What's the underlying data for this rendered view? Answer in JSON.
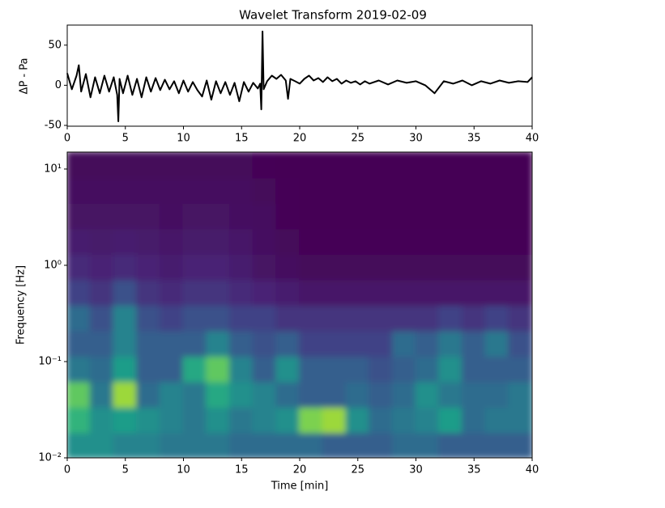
{
  "chart_data": [
    {
      "type": "line",
      "title": "Wavelet Transform 2019-02-09",
      "ylabel": "ΔP - Pa",
      "color": "#000000",
      "x": [
        0,
        0.4,
        0.8,
        1.0,
        1.2,
        1.6,
        2.0,
        2.4,
        2.8,
        3.2,
        3.6,
        4.0,
        4.3,
        4.4,
        4.5,
        4.8,
        5.2,
        5.6,
        6.0,
        6.4,
        6.8,
        7.2,
        7.6,
        8.0,
        8.4,
        8.8,
        9.2,
        9.6,
        10.0,
        10.4,
        10.8,
        11.2,
        11.6,
        12.0,
        12.4,
        12.8,
        13.2,
        13.6,
        14.0,
        14.4,
        14.8,
        15.2,
        15.6,
        16.0,
        16.4,
        16.6,
        16.7,
        16.8,
        16.9,
        17.2,
        17.6,
        18.0,
        18.4,
        18.8,
        19.0,
        19.2,
        19.6,
        20.0,
        20.4,
        20.8,
        21.2,
        21.6,
        22.0,
        22.4,
        22.8,
        23.2,
        23.6,
        24.0,
        24.4,
        24.8,
        25.2,
        25.6,
        26.0,
        26.8,
        27.6,
        28.4,
        29.2,
        30.0,
        30.8,
        31.6,
        32.4,
        33.2,
        34.0,
        34.8,
        35.6,
        36.4,
        37.2,
        38.0,
        38.8,
        39.6,
        40.0
      ],
      "values": [
        15,
        -5,
        12,
        25,
        -8,
        14,
        -15,
        10,
        -10,
        12,
        -8,
        10,
        -12,
        -45,
        8,
        -10,
        12,
        -12,
        8,
        -15,
        10,
        -8,
        9,
        -6,
        7,
        -5,
        5,
        -10,
        6,
        -8,
        4,
        -6,
        -14,
        6,
        -18,
        5,
        -10,
        4,
        -12,
        3,
        -20,
        4,
        -8,
        3,
        -4,
        2,
        -30,
        67,
        -5,
        5,
        12,
        8,
        13,
        6,
        -17,
        8,
        5,
        2,
        8,
        12,
        6,
        9,
        4,
        10,
        5,
        8,
        2,
        6,
        3,
        5,
        1,
        5,
        2,
        6,
        1,
        6,
        3,
        5,
        0,
        -10,
        5,
        2,
        6,
        0,
        5,
        2,
        6,
        3,
        5,
        4,
        10
      ],
      "xlim": [
        0,
        40
      ],
      "xticks": [
        0,
        5,
        10,
        15,
        20,
        25,
        30,
        35,
        40
      ],
      "ylim": [
        -51,
        75
      ],
      "yticks": [
        -50,
        0,
        50
      ]
    },
    {
      "type": "heatmap",
      "xlabel": "Time  [min]",
      "ylabel": "Frequency [Hz]",
      "colormap": "viridis",
      "log_y": true,
      "xlim": [
        0,
        40
      ],
      "xticks": [
        0,
        5,
        10,
        15,
        20,
        25,
        30,
        35,
        40
      ],
      "ylim": [
        0.01,
        15
      ],
      "yticks": [
        {
          "value": 0.01,
          "label": "10⁻²"
        },
        {
          "value": 0.1,
          "label": "10⁻¹"
        },
        {
          "value": 1,
          "label": "10⁰"
        },
        {
          "value": 10,
          "label": "10¹"
        }
      ],
      "z": [
        [
          0.5,
          0.5,
          0.45,
          0.45,
          0.4,
          0.4,
          0.4,
          0.35,
          0.35,
          0.35,
          0.35,
          0.3,
          0.3,
          0.3,
          0.35,
          0.35,
          0.3,
          0.3,
          0.3,
          0.3
        ],
        [
          0.65,
          0.5,
          0.55,
          0.5,
          0.45,
          0.4,
          0.5,
          0.4,
          0.45,
          0.5,
          0.8,
          0.85,
          0.5,
          0.35,
          0.4,
          0.45,
          0.55,
          0.35,
          0.4,
          0.4
        ],
        [
          0.75,
          0.4,
          0.85,
          0.35,
          0.45,
          0.4,
          0.6,
          0.5,
          0.45,
          0.35,
          0.3,
          0.3,
          0.35,
          0.3,
          0.35,
          0.5,
          0.4,
          0.35,
          0.35,
          0.4
        ],
        [
          0.4,
          0.35,
          0.55,
          0.3,
          0.3,
          0.6,
          0.75,
          0.45,
          0.3,
          0.5,
          0.3,
          0.3,
          0.3,
          0.25,
          0.3,
          0.35,
          0.5,
          0.3,
          0.3,
          0.3
        ],
        [
          0.3,
          0.3,
          0.45,
          0.3,
          0.3,
          0.3,
          0.45,
          0.3,
          0.25,
          0.3,
          0.2,
          0.2,
          0.2,
          0.2,
          0.35,
          0.3,
          0.4,
          0.3,
          0.4,
          0.25
        ],
        [
          0.35,
          0.25,
          0.45,
          0.25,
          0.2,
          0.25,
          0.25,
          0.2,
          0.2,
          0.15,
          0.15,
          0.15,
          0.15,
          0.15,
          0.15,
          0.15,
          0.2,
          0.15,
          0.2,
          0.15
        ],
        [
          0.2,
          0.15,
          0.25,
          0.15,
          0.12,
          0.15,
          0.15,
          0.12,
          0.1,
          0.08,
          0.06,
          0.06,
          0.06,
          0.06,
          0.06,
          0.06,
          0.06,
          0.06,
          0.06,
          0.06
        ],
        [
          0.12,
          0.1,
          0.12,
          0.1,
          0.08,
          0.1,
          0.1,
          0.08,
          0.05,
          0.03,
          0.02,
          0.02,
          0.02,
          0.02,
          0.02,
          0.02,
          0.02,
          0.02,
          0.02,
          0.02
        ],
        [
          0.08,
          0.07,
          0.08,
          0.07,
          0.06,
          0.07,
          0.07,
          0.06,
          0.04,
          0.02,
          0.01,
          0.01,
          0.01,
          0.01,
          0.01,
          0.01,
          0.01,
          0.01,
          0.01,
          0.01
        ],
        [
          0.05,
          0.05,
          0.05,
          0.05,
          0.04,
          0.05,
          0.05,
          0.04,
          0.03,
          0.01,
          0,
          0,
          0,
          0,
          0,
          0,
          0,
          0,
          0,
          0
        ],
        [
          0.03,
          0.03,
          0.03,
          0.03,
          0.03,
          0.03,
          0.03,
          0.03,
          0.02,
          0.01,
          0,
          0,
          0,
          0,
          0,
          0,
          0,
          0,
          0,
          0
        ],
        [
          0.02,
          0.02,
          0.02,
          0.02,
          0.02,
          0.02,
          0.02,
          0.02,
          0.01,
          0,
          0,
          0,
          0,
          0,
          0,
          0,
          0,
          0,
          0,
          0
        ]
      ]
    }
  ]
}
